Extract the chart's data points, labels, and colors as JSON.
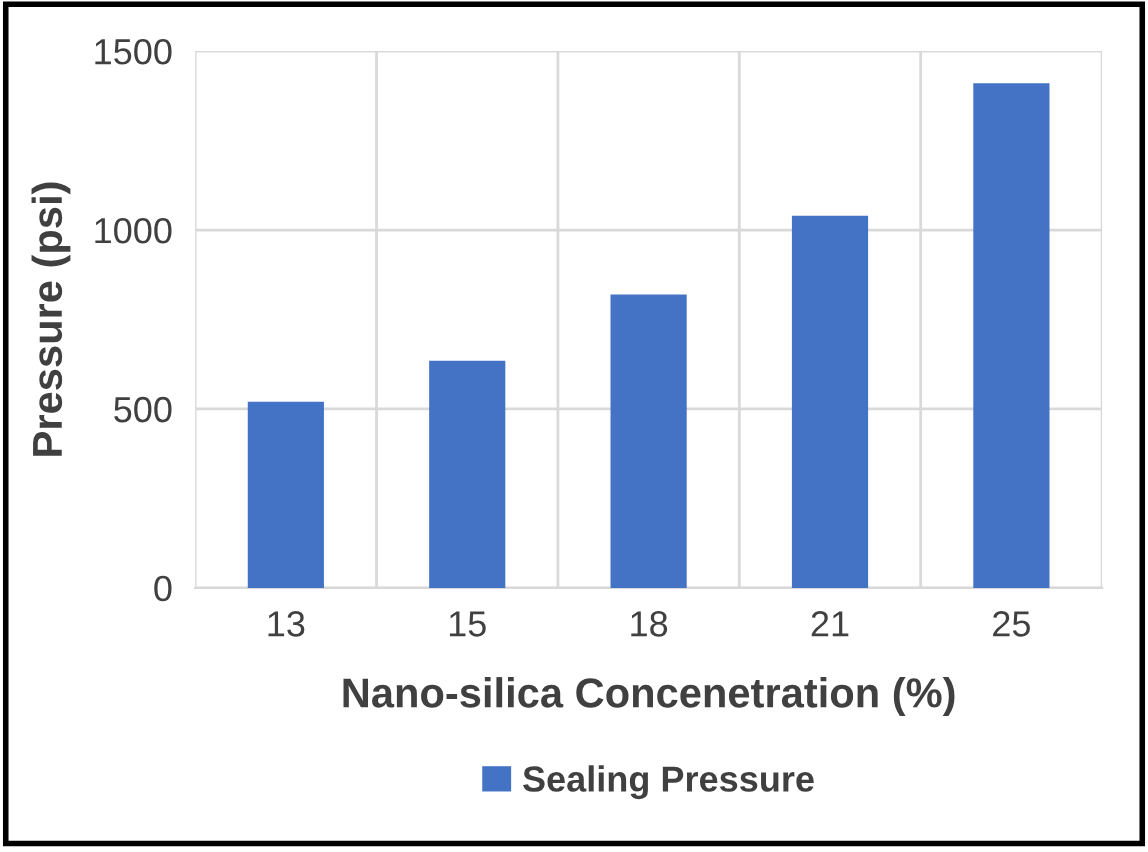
{
  "chart_data": {
    "type": "bar",
    "xlabel": "Nano-silica Concenetration (%)",
    "ylabel": "Pressure (psi)",
    "categories": [
      "13",
      "15",
      "18",
      "21",
      "25"
    ],
    "series": [
      {
        "name": "Sealing Pressure",
        "color": "#4472c4",
        "values": [
          520,
          635,
          820,
          1040,
          1410
        ]
      }
    ],
    "ylim": [
      0,
      1500
    ],
    "yticks": [
      0,
      500,
      1000,
      1500
    ],
    "grid": true,
    "legend": "bottom"
  }
}
